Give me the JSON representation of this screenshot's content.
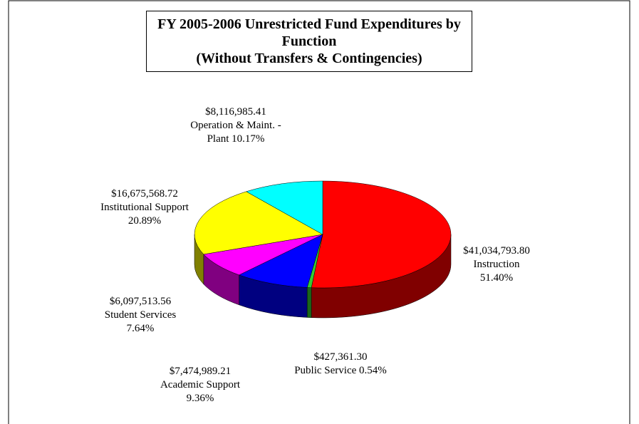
{
  "chart_data": {
    "type": "pie3d",
    "title": "FY 2005-2006 Unrestricted Fund Expenditures by Function",
    "subtitle": "(Without Transfers & Contingencies)",
    "categories": [
      "Instruction",
      "Public Service",
      "Academic Support",
      "Student Services",
      "Institutional Support",
      "Operation & Maint. - Plant"
    ],
    "values": [
      41034793.8,
      427361.3,
      7474989.21,
      6097513.56,
      16675568.72,
      8116985.41
    ],
    "value_labels": [
      "$41,034,793.80",
      "$427,361.30",
      "$7,474,989.21",
      "$6,097,513.56",
      "$16,675,568.72",
      "$8,116,985.41"
    ],
    "percent_labels": [
      "51.40%",
      "0.54%",
      "9.36%",
      "7.64%",
      "20.89%",
      "10.17%"
    ],
    "colors": [
      "#ff0000",
      "#33cc33",
      "#0000ff",
      "#ff00ff",
      "#ffff00",
      "#00ffff"
    ],
    "side_colors": [
      "#800000",
      "#1a661a",
      "#000080",
      "#800080",
      "#808000",
      "#008080"
    ]
  }
}
